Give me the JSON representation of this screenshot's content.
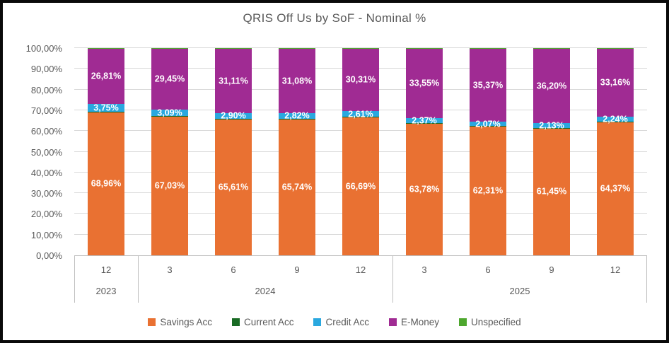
{
  "chart_data": {
    "type": "bar",
    "stacked": true,
    "title": "QRIS Off Us by SoF - Nominal %",
    "xlabel": "",
    "ylabel": "",
    "ylim": [
      0,
      100
    ],
    "grid": true,
    "legend_position": "bottom",
    "decimal_separator": ",",
    "value_suffix": "%",
    "ytick_labels": [
      "0,00%",
      "10,00%",
      "20,00%",
      "30,00%",
      "40,00%",
      "50,00%",
      "60,00%",
      "70,00%",
      "80,00%",
      "90,00%",
      "100,00%"
    ],
    "categories_months": [
      "12",
      "3",
      "6",
      "9",
      "12",
      "3",
      "6",
      "9",
      "12"
    ],
    "year_groups": [
      {
        "label": "2023",
        "span": 1
      },
      {
        "label": "2024",
        "span": 4
      },
      {
        "label": "2025",
        "span": 4
      }
    ],
    "series": [
      {
        "name": "Savings Acc",
        "color": "#E97132",
        "labeled": true,
        "values": [
          68.96,
          67.03,
          65.61,
          65.74,
          66.69,
          63.78,
          62.31,
          61.45,
          64.37
        ]
      },
      {
        "name": "Current Acc",
        "color": "#196B24",
        "labeled": false,
        "estimated": true,
        "values": [
          0.24,
          0.22,
          0.19,
          0.18,
          0.2,
          0.15,
          0.13,
          0.11,
          0.12
        ]
      },
      {
        "name": "Credit Acc",
        "color": "#2AA8DF",
        "labeled": true,
        "values": [
          3.75,
          3.09,
          2.9,
          2.82,
          2.61,
          2.37,
          2.07,
          2.13,
          2.24
        ]
      },
      {
        "name": "E-Money",
        "color": "#A02B93",
        "labeled": true,
        "values": [
          26.81,
          29.45,
          31.11,
          31.08,
          30.31,
          33.55,
          35.37,
          36.2,
          33.16
        ]
      },
      {
        "name": "Unspecified",
        "color": "#4EA72E",
        "labeled": false,
        "estimated": true,
        "values": [
          0.24,
          0.21,
          0.19,
          0.18,
          0.19,
          0.15,
          0.12,
          0.11,
          0.11
        ]
      }
    ]
  }
}
